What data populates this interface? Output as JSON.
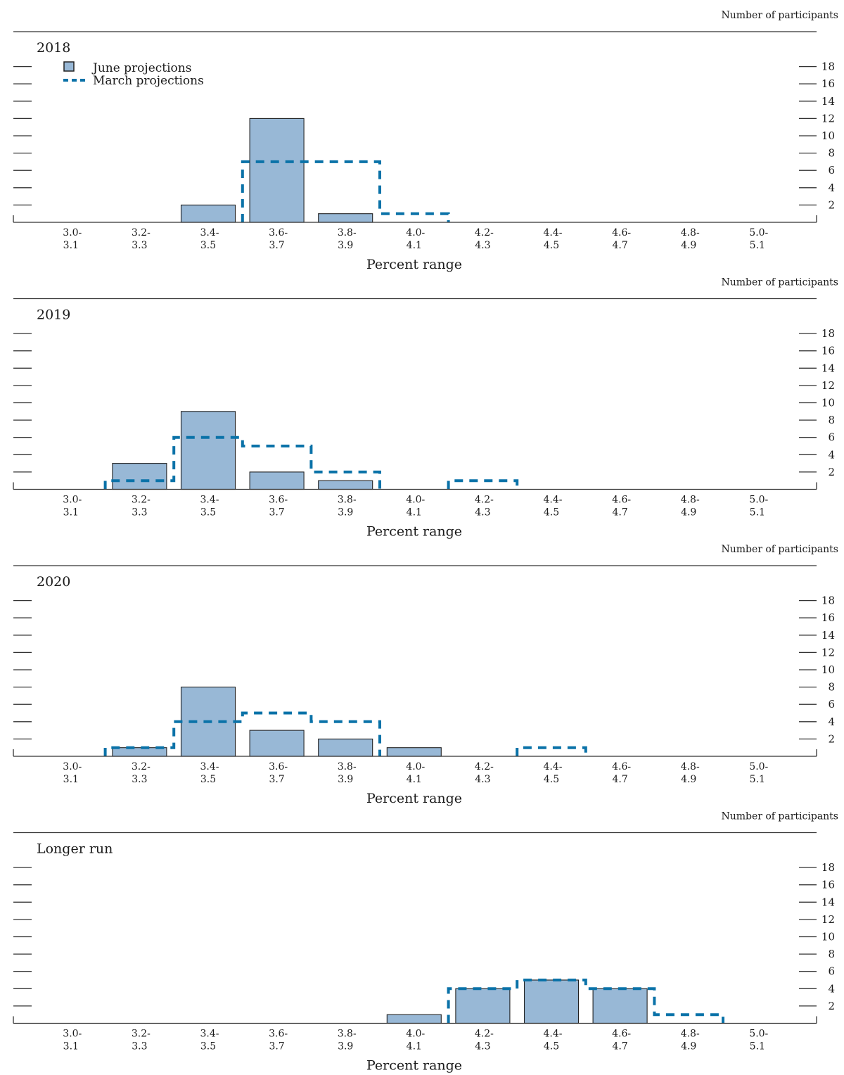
{
  "figure": {
    "x_categories": [
      [
        "3.0-",
        "3.1"
      ],
      [
        "3.2-",
        "3.3"
      ],
      [
        "3.4-",
        "3.5"
      ],
      [
        "3.6-",
        "3.7"
      ],
      [
        "3.8-",
        "3.9"
      ],
      [
        "4.0-",
        "4.1"
      ],
      [
        "4.2-",
        "4.3"
      ],
      [
        "4.4-",
        "4.5"
      ],
      [
        "4.6-",
        "4.7"
      ],
      [
        "4.8-",
        "4.9"
      ],
      [
        "5.0-",
        "5.1"
      ]
    ],
    "y_ticks": [
      2,
      4,
      6,
      8,
      10,
      12,
      14,
      16,
      18
    ],
    "ylim": [
      0,
      18
    ],
    "y_units": "Number of participants",
    "xlabel": "Percent range",
    "legend": {
      "june_label": "June projections",
      "march_label": "March projections",
      "placement": "top-left"
    },
    "colors": {
      "june_fill": "#98b8d6",
      "june_stroke": "#222222",
      "march_line": "#0a72a8",
      "axis": "#333333"
    }
  },
  "chart_data": [
    {
      "type": "bar",
      "title": "2018",
      "xlabel": "Percent range",
      "ylabel": "Number of participants",
      "categories": [
        "3.0-3.1",
        "3.2-3.3",
        "3.4-3.5",
        "3.6-3.7",
        "3.8-3.9",
        "4.0-4.1",
        "4.2-4.3",
        "4.4-4.5",
        "4.6-4.7",
        "4.8-4.9",
        "5.0-5.1"
      ],
      "series": [
        {
          "name": "June projections",
          "values": [
            0,
            0,
            2,
            12,
            1,
            0,
            0,
            0,
            0,
            0,
            0
          ]
        },
        {
          "name": "March projections",
          "values": [
            0,
            0,
            0,
            7,
            7,
            1,
            0,
            0,
            0,
            0,
            0
          ]
        }
      ],
      "ylim": [
        0,
        18
      ]
    },
    {
      "type": "bar",
      "title": "2019",
      "xlabel": "Percent range",
      "ylabel": "Number of participants",
      "categories": [
        "3.0-3.1",
        "3.2-3.3",
        "3.4-3.5",
        "3.6-3.7",
        "3.8-3.9",
        "4.0-4.1",
        "4.2-4.3",
        "4.4-4.5",
        "4.6-4.7",
        "4.8-4.9",
        "5.0-5.1"
      ],
      "series": [
        {
          "name": "June projections",
          "values": [
            0,
            3,
            9,
            2,
            1,
            0,
            0,
            0,
            0,
            0,
            0
          ]
        },
        {
          "name": "March projections",
          "values": [
            0,
            1,
            6,
            5,
            2,
            0,
            1,
            0,
            0,
            0,
            0
          ]
        }
      ],
      "ylim": [
        0,
        18
      ]
    },
    {
      "type": "bar",
      "title": "2020",
      "xlabel": "Percent range",
      "ylabel": "Number of participants",
      "categories": [
        "3.0-3.1",
        "3.2-3.3",
        "3.4-3.5",
        "3.6-3.7",
        "3.8-3.9",
        "4.0-4.1",
        "4.2-4.3",
        "4.4-4.5",
        "4.6-4.7",
        "4.8-4.9",
        "5.0-5.1"
      ],
      "series": [
        {
          "name": "June projections",
          "values": [
            0,
            1,
            8,
            3,
            2,
            1,
            0,
            0,
            0,
            0,
            0
          ]
        },
        {
          "name": "March projections",
          "values": [
            0,
            1,
            4,
            5,
            4,
            0,
            0,
            1,
            0,
            0,
            0
          ]
        }
      ],
      "ylim": [
        0,
        18
      ]
    },
    {
      "type": "bar",
      "title": "Longer run",
      "xlabel": "Percent range",
      "ylabel": "Number of participants",
      "categories": [
        "3.0-3.1",
        "3.2-3.3",
        "3.4-3.5",
        "3.6-3.7",
        "3.8-3.9",
        "4.0-4.1",
        "4.2-4.3",
        "4.4-4.5",
        "4.6-4.7",
        "4.8-4.9",
        "5.0-5.1"
      ],
      "series": [
        {
          "name": "June projections",
          "values": [
            0,
            0,
            0,
            0,
            0,
            1,
            4,
            5,
            4,
            0,
            0
          ]
        },
        {
          "name": "March projections",
          "values": [
            0,
            0,
            0,
            0,
            0,
            0,
            4,
            5,
            4,
            1,
            0
          ]
        }
      ],
      "ylim": [
        0,
        18
      ]
    }
  ]
}
